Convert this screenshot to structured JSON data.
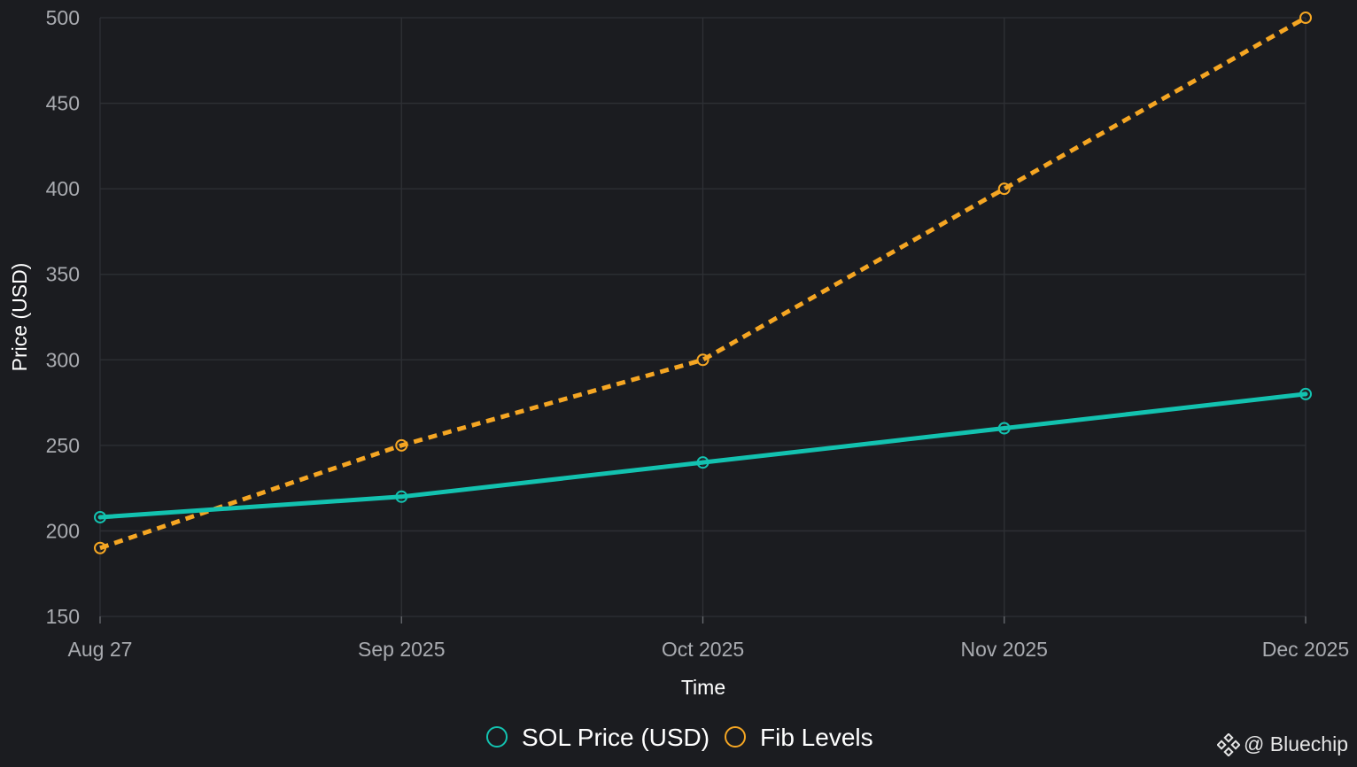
{
  "chart_data": {
    "type": "line",
    "xlabel": "Time",
    "ylabel": "Price (USD)",
    "categories": [
      "Aug 27",
      "Sep 2025",
      "Oct 2025",
      "Nov 2025",
      "Dec 2025"
    ],
    "ylim": [
      150,
      500
    ],
    "yticks": [
      150,
      200,
      250,
      300,
      350,
      400,
      450,
      500
    ],
    "grid": true,
    "legend_position": "bottom-center",
    "series": [
      {
        "name": "SOL Price (USD)",
        "values": [
          208,
          220,
          240,
          260,
          280
        ],
        "color": "#13c2b0",
        "style": "solid",
        "marker": "open-circle"
      },
      {
        "name": "Fib Levels",
        "values": [
          190,
          250,
          300,
          400,
          500
        ],
        "color": "#f5a623",
        "style": "dashed",
        "marker": "open-circle"
      }
    ]
  },
  "watermark": {
    "text": "@ Bluechip",
    "icon": "binance-diamond-icon"
  },
  "theme": {
    "background": "#1b1c20",
    "grid_color": "#2e3035"
  }
}
